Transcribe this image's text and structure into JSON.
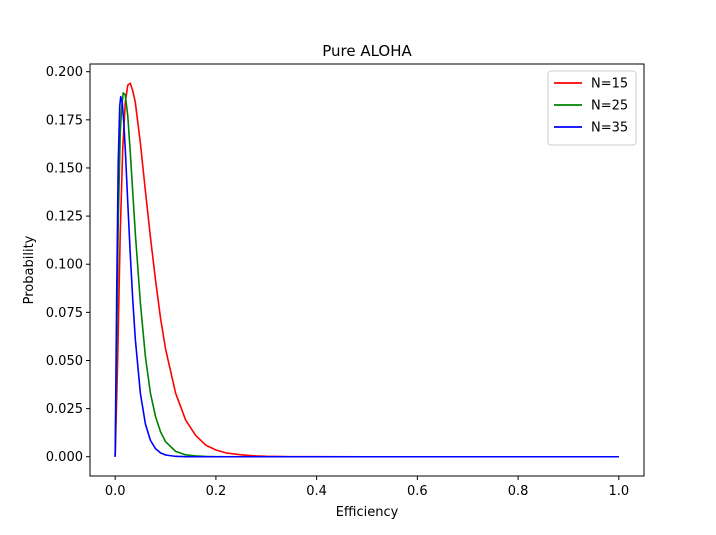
{
  "chart_data": {
    "type": "line",
    "title": "Pure ALOHA",
    "xlabel": "Efficiency",
    "ylabel": "Probability",
    "xlim": [
      -0.05,
      1.05
    ],
    "ylim": [
      -0.01,
      0.204
    ],
    "xticks": [
      0.0,
      0.2,
      0.4,
      0.6,
      0.8,
      1.0
    ],
    "xtick_labels": [
      "0.0",
      "0.2",
      "0.4",
      "0.6",
      "0.8",
      "1.0"
    ],
    "yticks": [
      0.0,
      0.025,
      0.05,
      0.075,
      0.1,
      0.125,
      0.15,
      0.175,
      0.2
    ],
    "ytick_labels": [
      "0.000",
      "0.025",
      "0.050",
      "0.075",
      "0.100",
      "0.125",
      "0.150",
      "0.175",
      "0.200"
    ],
    "grid": false,
    "legend": "top-right",
    "series": [
      {
        "name": "N=15",
        "color": "#ff0000",
        "x": [
          0,
          0.005,
          0.01,
          0.015,
          0.02,
          0.025,
          0.03,
          0.035,
          0.04,
          0.05,
          0.06,
          0.07,
          0.08,
          0.09,
          0.1,
          0.12,
          0.14,
          0.16,
          0.18,
          0.2,
          0.22,
          0.25,
          0.28,
          0.3,
          0.35,
          0.4,
          0.5,
          0.6,
          0.7,
          0.8,
          0.9,
          1.0
        ],
        "y": [
          0,
          0.051,
          0.116,
          0.16,
          0.184,
          0.193,
          0.194,
          0.19,
          0.184,
          0.163,
          0.138,
          0.114,
          0.092,
          0.072,
          0.056,
          0.033,
          0.019,
          0.011,
          0.006,
          0.0035,
          0.002,
          0.001,
          0.0004,
          0.0002,
          5e-05,
          1e-05,
          0,
          0,
          0,
          0,
          0,
          0
        ]
      },
      {
        "name": "N=25",
        "color": "#008000",
        "x": [
          0,
          0.003,
          0.006,
          0.01,
          0.013,
          0.016,
          0.02,
          0.025,
          0.03,
          0.035,
          0.04,
          0.05,
          0.06,
          0.07,
          0.08,
          0.09,
          0.1,
          0.12,
          0.14,
          0.16,
          0.18,
          0.2,
          0.25,
          0.3,
          0.4,
          0.5,
          0.6,
          0.7,
          0.8,
          0.9,
          1.0
        ],
        "y": [
          0,
          0.055,
          0.121,
          0.168,
          0.182,
          0.189,
          0.188,
          0.177,
          0.158,
          0.137,
          0.116,
          0.08,
          0.052,
          0.033,
          0.021,
          0.013,
          0.0078,
          0.0028,
          0.001,
          0.0004,
          0.00015,
          5e-05,
          0,
          0,
          0,
          0,
          0,
          0,
          0,
          0,
          0
        ]
      },
      {
        "name": "N=35",
        "color": "#0000ff",
        "x": [
          0,
          0.003,
          0.006,
          0.009,
          0.011,
          0.014,
          0.017,
          0.02,
          0.025,
          0.03,
          0.035,
          0.04,
          0.05,
          0.06,
          0.07,
          0.08,
          0.09,
          0.1,
          0.12,
          0.14,
          0.16,
          0.2,
          0.3,
          0.4,
          0.5,
          0.6,
          0.7,
          0.8,
          0.9,
          1.0
        ],
        "y": [
          0,
          0.084,
          0.152,
          0.182,
          0.187,
          0.184,
          0.174,
          0.16,
          0.132,
          0.105,
          0.081,
          0.061,
          0.033,
          0.017,
          0.0085,
          0.0042,
          0.002,
          0.0009,
          0.0002,
          4e-05,
          0,
          0,
          0,
          0,
          0,
          0,
          0,
          0,
          0,
          0
        ]
      }
    ]
  }
}
